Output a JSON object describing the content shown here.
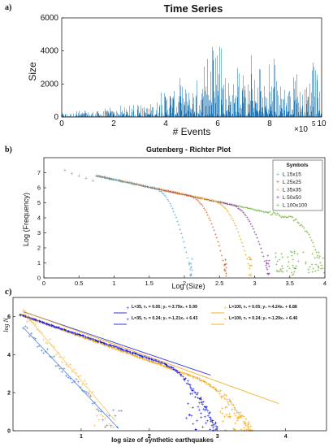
{
  "chart_data": [
    {
      "panel_label": "a)",
      "type": "bar",
      "title": "Time Series",
      "xlabel": "# Events",
      "ylabel": "Size",
      "x_exponent": "×10",
      "x_exponent_power": "5",
      "xlim": [
        0,
        10
      ],
      "ylim": [
        0,
        6000
      ],
      "xticks": [
        0,
        2,
        4,
        6,
        8,
        10
      ],
      "yticks": [
        0,
        2000,
        4000,
        6000
      ],
      "color": "#1f77b4",
      "series": [
        {
          "values_envelope": [
            [
              0.0,
              300
            ],
            [
              0.5,
              320
            ],
            [
              1.0,
              420
            ],
            [
              1.5,
              480
            ],
            [
              2.0,
              560
            ],
            [
              2.5,
              620
            ],
            [
              3.0,
              700
            ],
            [
              3.3,
              900
            ],
            [
              3.6,
              1200
            ],
            [
              3.9,
              1600
            ],
            [
              4.1,
              2600
            ],
            [
              4.3,
              1900
            ],
            [
              4.6,
              2500
            ],
            [
              4.9,
              2200
            ],
            [
              5.2,
              3000
            ],
            [
              5.4,
              2600
            ],
            [
              5.7,
              4200
            ],
            [
              5.9,
              3200
            ],
            [
              6.1,
              4700
            ],
            [
              6.3,
              3700
            ],
            [
              6.5,
              2900
            ],
            [
              6.7,
              2600
            ],
            [
              6.9,
              3000
            ],
            [
              7.1,
              2400
            ],
            [
              7.3,
              3500
            ],
            [
              7.5,
              2700
            ],
            [
              7.7,
              2800
            ],
            [
              7.9,
              2500
            ],
            [
              8.1,
              3300
            ],
            [
              8.4,
              2600
            ],
            [
              8.6,
              2800
            ],
            [
              8.9,
              2300
            ],
            [
              9.1,
              2500
            ],
            [
              9.3,
              2000
            ],
            [
              9.6,
              3300
            ],
            [
              9.8,
              2400
            ],
            [
              10.0,
              1200
            ]
          ]
        }
      ]
    },
    {
      "panel_label": "b)",
      "type": "scatter",
      "title": "Gutenberg - Richter Plot",
      "xlabel": "Log (Size)",
      "ylabel": "Log (Frequency)",
      "xlim": [
        0,
        4
      ],
      "ylim": [
        0,
        8
      ],
      "xticks": [
        0,
        0.5,
        1,
        1.5,
        2,
        2.5,
        3,
        3.5,
        4
      ],
      "yticks": [
        0,
        1,
        2,
        3,
        4,
        5,
        6,
        7
      ],
      "legend": {
        "title": "Symbols",
        "placement": "top-right"
      },
      "series": [
        {
          "name": "L 15x15",
          "color": "#4fa9d9",
          "cutoff": 2.1,
          "slope": -1.0
        },
        {
          "name": "L 25x25",
          "color": "#d65a1b",
          "cutoff": 2.6,
          "slope": -1.0
        },
        {
          "name": "L 35x35",
          "color": "#e6a81a",
          "cutoff": 2.95,
          "slope": -1.0
        },
        {
          "name": "L 50x50",
          "color": "#7b2d91",
          "cutoff": 3.2,
          "slope": -1.0
        },
        {
          "name": "L 100x100",
          "color": "#6aab32",
          "cutoff": 4.0,
          "slope": -1.0
        }
      ],
      "head_points": [
        [
          0.3,
          7.2
        ],
        [
          0.4,
          6.95
        ],
        [
          0.5,
          6.8
        ],
        [
          0.6,
          6.65
        ],
        [
          0.7,
          6.5
        ]
      ]
    },
    {
      "panel_label": "c)",
      "type": "scatter",
      "xlabel": "log size of synthetic earthquakes",
      "ylabel": "log N",
      "xlim": [
        0,
        4.6
      ],
      "ylim": [
        0,
        7
      ],
      "xticks": [
        1,
        2,
        3,
        4
      ],
      "yticks": [
        0,
        2,
        4,
        6
      ],
      "legend": [
        {
          "text": "L=35, τ₁ = 0.05; y₁ =-3.79x₁ + 5.99",
          "color": "#1b1bd6"
        },
        {
          "text": "L=100, τ₁ = 0.05; y₁ =-4.24x₁ + 6.88",
          "color": "#f4a70e"
        },
        {
          "text": "L=35, τ₂ = 0.24; y₂ =-1.21x₂ + 6.43",
          "color": "#1b1bd6"
        },
        {
          "text": "L=100, τ₂ = 0.24; y₂ =-1.29x₂ + 6.46",
          "color": "#f4a70e"
        }
      ],
      "series": [
        {
          "name": "L=35 (τ₂ = 0.24)",
          "color": "#1b1bd6",
          "cutoff": 3.0,
          "fit": {
            "m": -1.21,
            "b": 6.43
          }
        },
        {
          "name": "L=100 (τ₂ = 0.24)",
          "color": "#f4a70e",
          "cutoff": 3.5,
          "fit": {
            "m": -1.29,
            "b": 6.46
          }
        },
        {
          "name": "L=35 (τ₁ = 0.05)",
          "color": "#4a7fd6",
          "cutoff": 1.6,
          "fit": {
            "m": -3.79,
            "b": 5.99
          }
        },
        {
          "name": "L=100 (τ₁ = 0.05)",
          "color": "#f7c25a",
          "cutoff": 1.5,
          "fit": {
            "m": -4.24,
            "b": 6.88
          }
        }
      ]
    }
  ]
}
